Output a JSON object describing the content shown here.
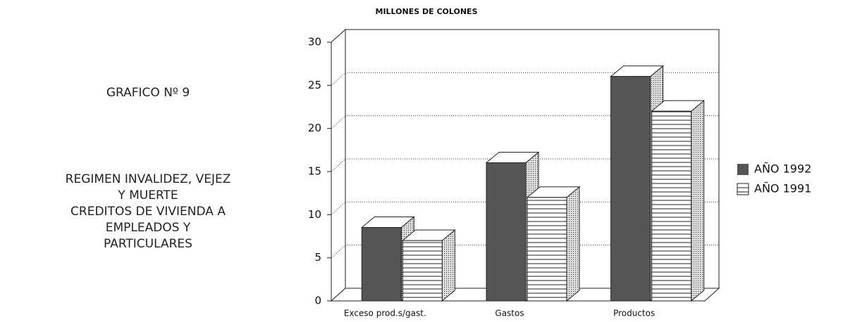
{
  "chart_data": {
    "type": "bar3d",
    "title": "GRAFICO Nº 9",
    "subtitle": [
      "REGIMEN INVALIDEZ, VEJEZ",
      "Y MUERTE",
      "CREDITOS DE VIVIENDA A",
      "EMPLEADOS Y",
      "PARTICULARES"
    ],
    "y_label": "MILLONES DE COLONES",
    "categories": [
      "Exceso prod.s/gast.",
      "Gastos",
      "Productos"
    ],
    "series": [
      {
        "name": "AÑO 1992",
        "color": "#555555",
        "values": [
          9.5,
          17,
          27
        ]
      },
      {
        "name": "AÑO 1991",
        "color": "#ffffff",
        "hatch": true,
        "values": [
          7,
          12,
          22
        ]
      }
    ],
    "ylim": [
      0,
      30
    ],
    "yticks": [
      0,
      5,
      10,
      15,
      20,
      25,
      30
    ],
    "grid": true,
    "legend": "right"
  }
}
